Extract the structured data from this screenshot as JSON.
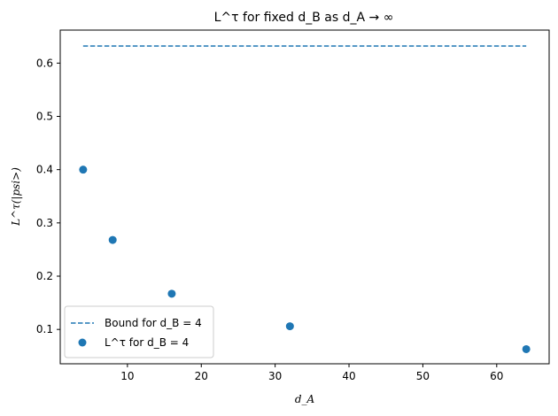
{
  "chart_data": {
    "type": "scatter",
    "title": "L^τ for fixed d_B as d_A → ∞",
    "xlabel": "d_A",
    "ylabel": "L^τ(|psi>)",
    "xlim": [
      0.9,
      67.1
    ],
    "ylim": [
      0.0355,
      0.662
    ],
    "xticks": [
      10,
      20,
      30,
      40,
      50,
      60
    ],
    "yticks": [
      0.1,
      0.2,
      0.3,
      0.4,
      0.5,
      0.6
    ],
    "grid": false,
    "legend_position": "lower-left",
    "series": [
      {
        "name": "Bound for d_B = 4",
        "type": "line",
        "style": "dashed",
        "color": "#1f77b4",
        "x": [
          4,
          64
        ],
        "y": [
          0.632,
          0.632
        ]
      },
      {
        "name": "L^τ for d_B = 4",
        "type": "scatter",
        "color": "#1f77b4",
        "x": [
          4,
          8,
          16,
          32,
          64
        ],
        "y": [
          0.4,
          0.268,
          0.167,
          0.106,
          0.063
        ]
      }
    ]
  }
}
